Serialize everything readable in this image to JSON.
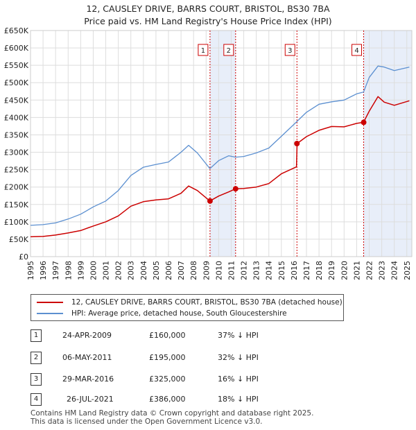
{
  "title_line1": "12, CAUSLEY DRIVE, BARRS COURT, BRISTOL, BS30 7BA",
  "title_line2": "Price paid vs. HM Land Registry's House Price Index (HPI)",
  "chart_data": {
    "type": "line",
    "title": "12, CAUSLEY DRIVE, BARRS COURT, BRISTOL, BS30 7BA - Price paid vs. HM Land Registry's House Price Index (HPI)",
    "xlim": [
      1995,
      2025.4
    ],
    "ylim": [
      0,
      650000
    ],
    "y_ticks": [
      0,
      50000,
      100000,
      150000,
      200000,
      250000,
      300000,
      350000,
      400000,
      450000,
      500000,
      550000,
      600000,
      650000
    ],
    "y_tick_labels": [
      "£0",
      "£50K",
      "£100K",
      "£150K",
      "£200K",
      "£250K",
      "£300K",
      "£350K",
      "£400K",
      "£450K",
      "£500K",
      "£550K",
      "£600K",
      "£650K"
    ],
    "x_ticks": [
      1995,
      1996,
      1997,
      1998,
      1999,
      2000,
      2001,
      2002,
      2003,
      2004,
      2005,
      2006,
      2007,
      2008,
      2009,
      2010,
      2011,
      2012,
      2013,
      2014,
      2015,
      2016,
      2017,
      2018,
      2019,
      2020,
      2021,
      2022,
      2023,
      2024,
      2025
    ],
    "grid": true,
    "colors": {
      "price": "#cc0000",
      "hpi": "#5b8fd0",
      "shade": "#e8eef9",
      "marker": "#cc0000"
    },
    "series": [
      {
        "name": "12, CAUSLEY DRIVE, BARRS COURT, BRISTOL, BS30 7BA (detached house)",
        "key": "price",
        "x": [
          1995,
          1996,
          1997,
          1998,
          1999,
          2000,
          2001,
          2002,
          2003,
          2004,
          2005,
          2006,
          2007,
          2007.6,
          2008.3,
          2009.3,
          2010,
          2010.8,
          2011.35,
          2012,
          2013,
          2014,
          2015,
          2016.2,
          2016.25,
          2017,
          2018,
          2019,
          2020,
          2021,
          2021.55,
          2022,
          2022.7,
          2023.2,
          2024,
          2025.2
        ],
        "values": [
          57000,
          58000,
          62000,
          68000,
          75000,
          88000,
          100000,
          117000,
          145000,
          158000,
          163000,
          166000,
          182000,
          203000,
          190000,
          160000,
          174000,
          186000,
          195000,
          196000,
          200000,
          210000,
          238000,
          258000,
          325000,
          345000,
          363000,
          374000,
          373000,
          383000,
          386000,
          418000,
          460000,
          444000,
          435000,
          448000
        ]
      },
      {
        "name": "HPI: Average price, detached house, South Gloucestershire",
        "key": "hpi",
        "x": [
          1995,
          1996,
          1997,
          1998,
          1999,
          2000,
          2001,
          2002,
          2003,
          2004,
          2005,
          2006,
          2007,
          2007.6,
          2008.3,
          2009.3,
          2010,
          2010.8,
          2011.35,
          2012,
          2013,
          2014,
          2015,
          2016,
          2017,
          2018,
          2019,
          2020,
          2021,
          2021.55,
          2022,
          2022.7,
          2023.2,
          2024,
          2025.2
        ],
        "values": [
          90000,
          92000,
          97000,
          108000,
          122000,
          143000,
          160000,
          190000,
          233000,
          257000,
          265000,
          272000,
          300000,
          320000,
          298000,
          253000,
          276000,
          290000,
          286000,
          288000,
          298000,
          312000,
          346000,
          380000,
          415000,
          438000,
          445000,
          450000,
          468000,
          473000,
          515000,
          548000,
          545000,
          535000,
          545000
        ]
      }
    ],
    "shaded_ranges": [
      [
        2009.31,
        2011.35
      ],
      [
        2021.56,
        2025.4
      ]
    ],
    "annotations": [
      {
        "label": "1",
        "x": 2009.31,
        "y": 160000
      },
      {
        "label": "2",
        "x": 2011.35,
        "y": 195000
      },
      {
        "label": "3",
        "x": 2016.24,
        "y": 325000
      },
      {
        "label": "4",
        "x": 2021.56,
        "y": 386000
      }
    ]
  },
  "legend": {
    "price_label": "12, CAUSLEY DRIVE, BARRS COURT, BRISTOL, BS30 7BA (detached house)",
    "hpi_label": "HPI: Average price, detached house, South Gloucestershire"
  },
  "transactions": [
    {
      "num": "1",
      "date": "24-APR-2009",
      "price": "£160,000",
      "hpi": "37% ↓ HPI"
    },
    {
      "num": "2",
      "date": "06-MAY-2011",
      "price": "£195,000",
      "hpi": "32% ↓ HPI"
    },
    {
      "num": "3",
      "date": "29-MAR-2016",
      "price": "£325,000",
      "hpi": "16% ↓ HPI"
    },
    {
      "num": "4",
      "date": "26-JUL-2021",
      "price": "£386,000",
      "hpi": "18% ↓ HPI"
    }
  ],
  "footer": {
    "line1": "Contains HM Land Registry data © Crown copyright and database right 2025.",
    "line2": "This data is licensed under the Open Government Licence v3.0."
  }
}
